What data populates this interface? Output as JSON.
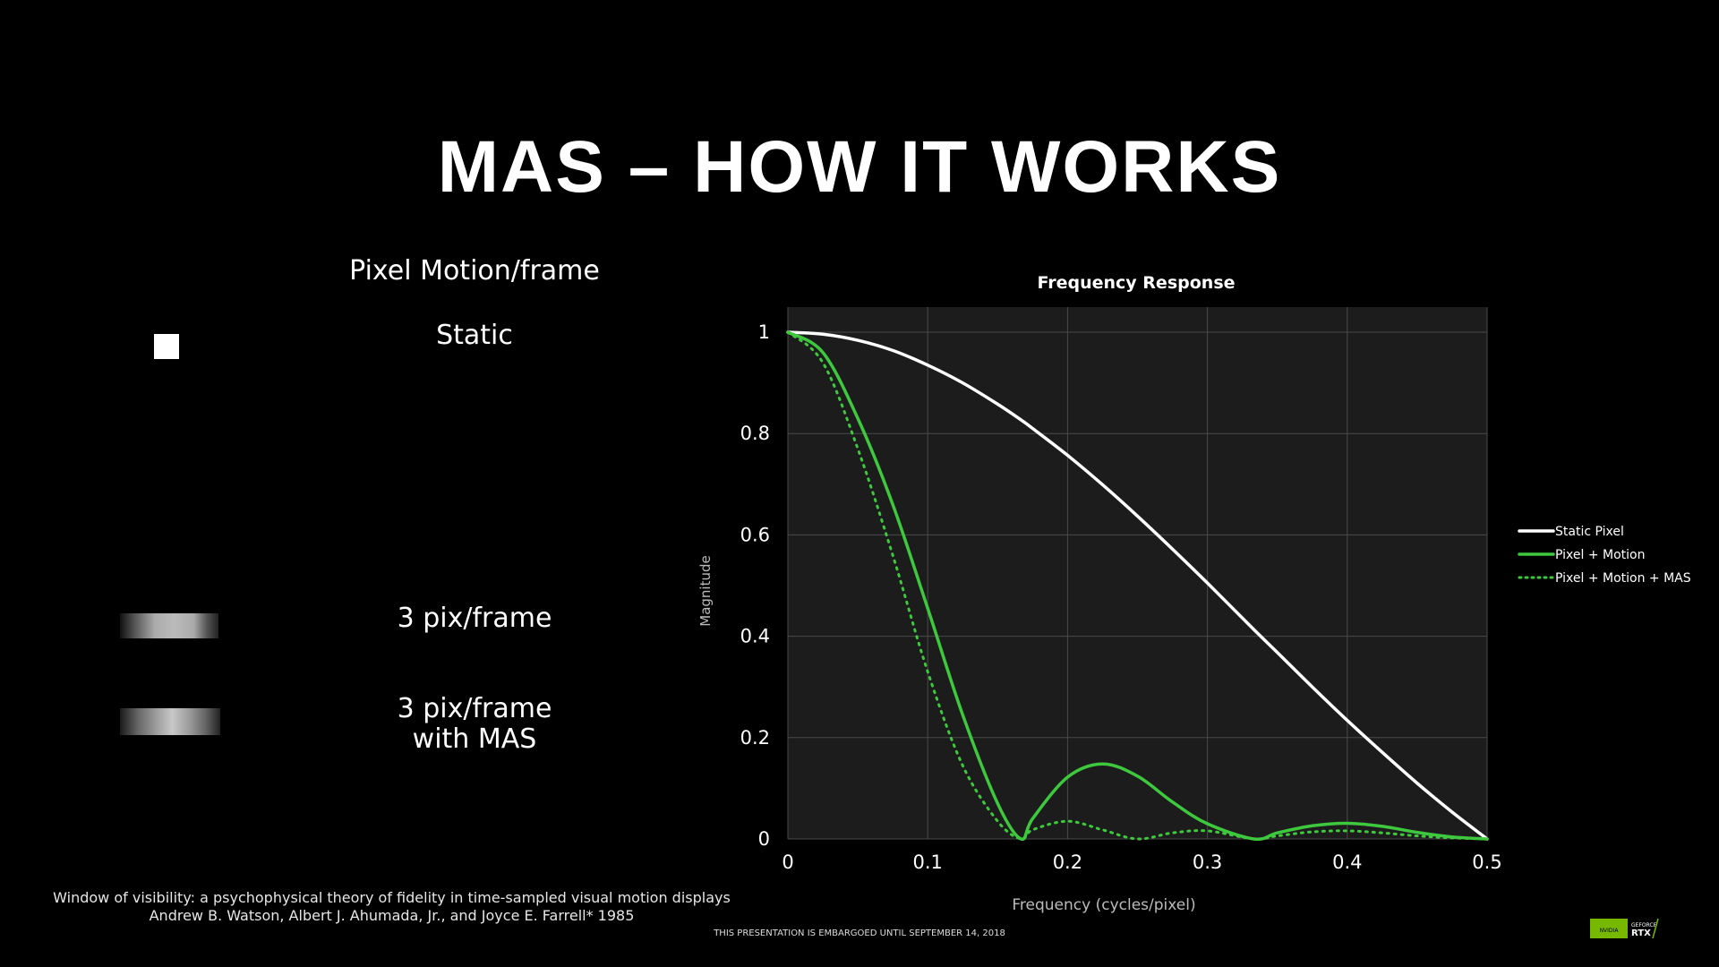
{
  "slide": {
    "title": "MAS – HOW IT WORKS",
    "left_heading": "Pixel Motion/frame",
    "rows": [
      {
        "label": "Static"
      },
      {
        "label": "3 pix/frame"
      },
      {
        "label_line1": "3 pix/frame",
        "label_line2": "with MAS"
      }
    ],
    "citation_line1": "Window of visibility: a psychophysical theory of fidelity in time-sampled visual motion displays",
    "citation_line2": "Andrew B. Watson, Albert J. Ahumada, Jr., and Joyce E. Farrell* 1985",
    "embargo": "THIS PRESENTATION IS EMBARGOED UNTIL SEPTEMBER 14, 2018",
    "badge": {
      "brand": "NVIDIA",
      "line1": "GEFORCE",
      "line2": "RTX"
    }
  },
  "chart_data": {
    "type": "line",
    "title": "Frequency Response",
    "xlabel": "Frequency (cycles/pixel)",
    "ylabel": "Magnitude",
    "xlim": [
      0,
      0.5
    ],
    "ylim": [
      0,
      1.05
    ],
    "xticks": [
      "0",
      "0.1",
      "0.2",
      "0.3",
      "0.4",
      "0.5"
    ],
    "yticks": [
      "0",
      "0.2",
      "0.4",
      "0.6",
      "0.8",
      "1"
    ],
    "grid": true,
    "legend_position": "right",
    "colors": {
      "background": "#1c1c1c",
      "grid": "#4a4a4a",
      "static": "#ffffff",
      "motion": "#3ec83e",
      "mas": "#3ec83e"
    },
    "x": [
      0,
      0.025,
      0.05,
      0.075,
      0.1,
      0.125,
      0.15,
      0.1667,
      0.175,
      0.2,
      0.225,
      0.25,
      0.275,
      0.3,
      0.3333,
      0.35,
      0.375,
      0.4,
      0.425,
      0.45,
      0.475,
      0.5
    ],
    "series": [
      {
        "name": "Static Pixel",
        "style": "solid",
        "color": "#ffffff",
        "values": [
          1.0,
          0.996,
          0.984,
          0.964,
          0.935,
          0.9,
          0.858,
          0.827,
          0.81,
          0.757,
          0.699,
          0.637,
          0.572,
          0.505,
          0.413,
          0.368,
          0.3,
          0.234,
          0.171,
          0.11,
          0.053,
          0.0
        ]
      },
      {
        "name": "Pixel + Motion",
        "style": "solid",
        "color": "#3ec83e",
        "values": [
          1.0,
          0.96,
          0.83,
          0.66,
          0.455,
          0.245,
          0.07,
          0.0,
          0.04,
          0.122,
          0.148,
          0.124,
          0.073,
          0.03,
          0.0,
          0.012,
          0.026,
          0.031,
          0.025,
          0.013,
          0.004,
          0.0
        ]
      },
      {
        "name": "Pixel + Motion + MAS",
        "style": "dotted",
        "color": "#3ec83e",
        "values": [
          1.0,
          0.94,
          0.77,
          0.56,
          0.33,
          0.145,
          0.035,
          0.0,
          0.018,
          0.035,
          0.018,
          0.0,
          0.012,
          0.016,
          0.0,
          0.006,
          0.014,
          0.016,
          0.012,
          0.006,
          0.002,
          0.0
        ]
      }
    ]
  }
}
